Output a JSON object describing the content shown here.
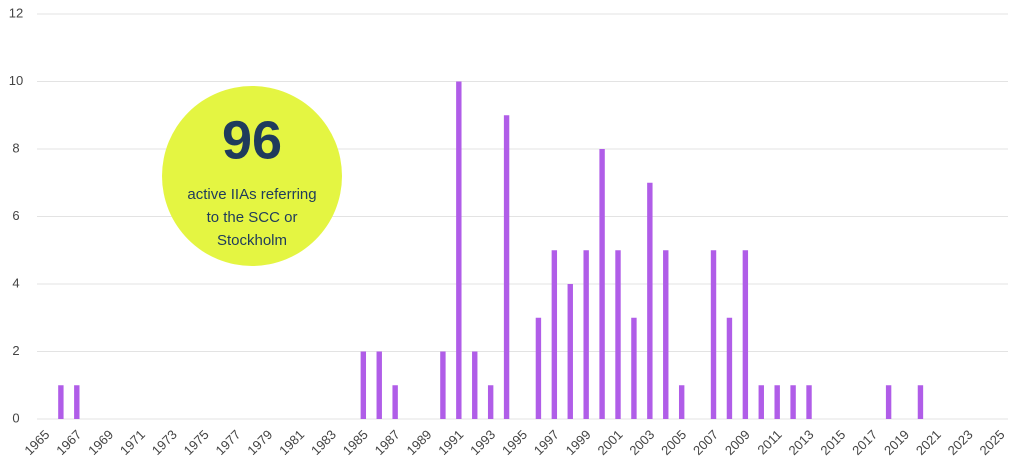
{
  "chart_data": {
    "type": "bar",
    "categories": [
      "1965",
      null,
      "1967",
      null,
      "1969",
      null,
      "1971",
      null,
      "1973",
      null,
      "1975",
      null,
      "1977",
      null,
      "1979",
      null,
      "1981",
      null,
      "1983",
      null,
      "1985",
      null,
      "1987",
      null,
      "1989",
      null,
      "1991",
      null,
      "1993",
      null,
      "1995",
      null,
      "1997",
      null,
      "1999",
      null,
      "2001",
      null,
      "2003",
      null,
      "2005",
      null,
      "2007",
      null,
      "2009",
      null,
      "2011",
      null,
      "2013",
      null,
      "2015",
      null,
      "2017",
      null,
      "2019",
      null,
      "2021",
      null,
      "2023",
      null,
      "2025"
    ],
    "values": [
      0,
      1,
      1,
      0,
      0,
      0,
      0,
      0,
      0,
      0,
      0,
      0,
      0,
      0,
      0,
      0,
      0,
      0,
      0,
      0,
      2,
      2,
      1,
      0,
      0,
      2,
      10,
      2,
      1,
      9,
      0,
      3,
      5,
      4,
      5,
      8,
      5,
      3,
      7,
      5,
      1,
      0,
      5,
      3,
      5,
      1,
      1,
      1,
      1,
      0,
      0,
      0,
      0,
      1,
      0,
      1,
      0,
      0,
      0,
      0,
      0
    ],
    "color": "#b05de8",
    "ylim": [
      0,
      12
    ],
    "yticks": [
      0,
      2,
      4,
      6,
      8,
      10,
      12
    ],
    "grid": true,
    "annotation": {
      "headline": "96",
      "lines": [
        "active IIAs referring",
        "to the SCC or",
        "Stockholm"
      ],
      "color": "#e4f542"
    }
  }
}
